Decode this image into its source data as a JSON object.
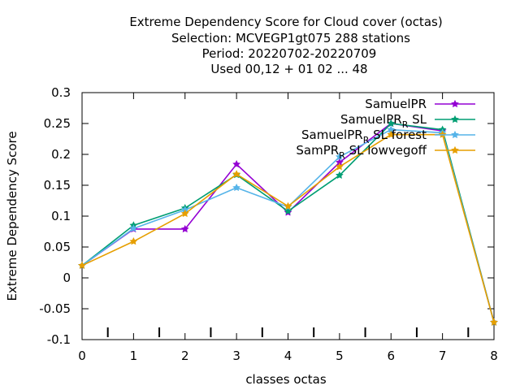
{
  "chart_data": {
    "type": "line",
    "title_lines": [
      "Extreme Dependency Score  for Cloud cover (octas)",
      "Selection: MCVEGP1gt075    288 stations",
      "Period: 20220702-20220709",
      "Used  00,12  + 01 02 ... 48"
    ],
    "xlabel": "classes octas",
    "ylabel": "Extreme Dependency Score",
    "xlim": [
      0,
      8
    ],
    "ylim": [
      -0.1,
      0.3
    ],
    "x_ticks": [
      "0",
      "1",
      "2",
      "3",
      "4",
      "5",
      "6",
      "7",
      "8"
    ],
    "y_ticks": [
      "-0.1",
      "-0.05",
      "0",
      "0.05",
      "0.1",
      "0.15",
      "0.2",
      "0.25",
      "0.3"
    ],
    "grid": false,
    "legend_position": "top-right",
    "x": [
      0,
      1,
      2,
      3,
      4,
      5,
      6,
      7,
      8
    ],
    "series": [
      {
        "name": "SamuelPR",
        "color": "#9400d3",
        "marker": "star",
        "values": [
          0.02,
          0.079,
          0.079,
          0.184,
          0.106,
          0.187,
          0.25,
          0.238,
          -0.072
        ]
      },
      {
        "name": "SamuelPR_R SL",
        "color": "#009e73",
        "marker": "star",
        "values": [
          0.02,
          0.085,
          0.113,
          0.167,
          0.108,
          0.166,
          0.25,
          0.24,
          -0.072
        ]
      },
      {
        "name": "SamuelPR_R SL forest",
        "color": "#56b4e9",
        "marker": "star",
        "values": [
          0.02,
          0.08,
          0.11,
          0.146,
          0.115,
          0.196,
          0.24,
          0.235,
          -0.072
        ]
      },
      {
        "name": "SamPR_R SL lowvegoff",
        "color": "#e69f00",
        "marker": "star",
        "values": [
          0.02,
          0.059,
          0.104,
          0.168,
          0.116,
          0.18,
          0.232,
          0.232,
          -0.072
        ]
      }
    ],
    "legend_labels": [
      {
        "main": "SamuelPR",
        "sub": "",
        "tail": ""
      },
      {
        "main": "SamuelPR",
        "sub": "R",
        "tail": "SL"
      },
      {
        "main": "SamuelPR",
        "sub": "R",
        "tail": "SL forest"
      },
      {
        "main": "SamPR",
        "sub": "R",
        "tail": "SL lowvegoff"
      }
    ],
    "bottom_marks": [
      0.5,
      1.5,
      2.5,
      3.5,
      4.5,
      5.5,
      6.5,
      7.5
    ]
  }
}
